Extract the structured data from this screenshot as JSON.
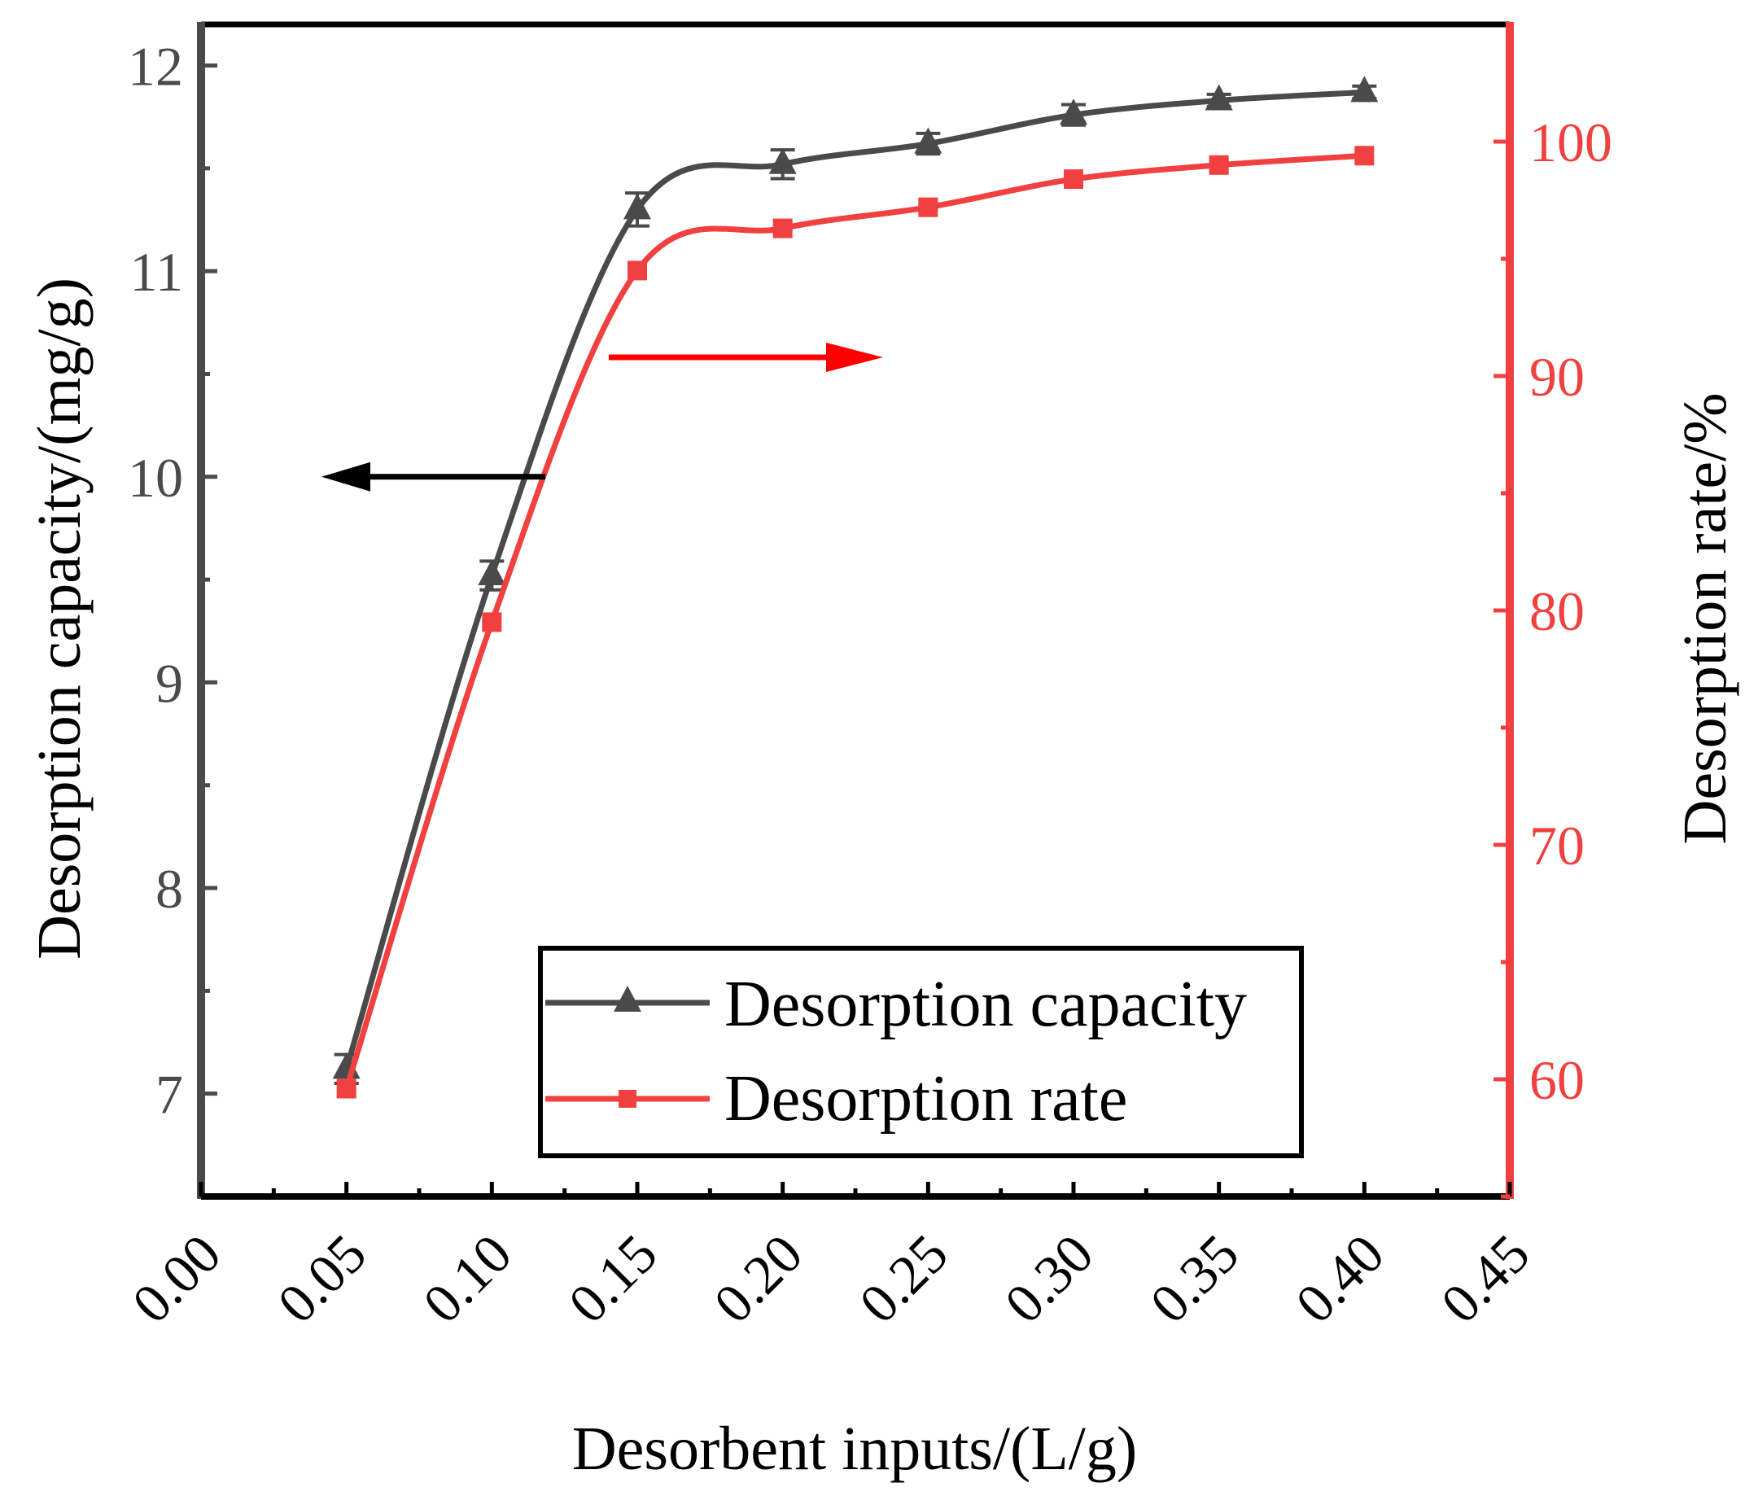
{
  "chart_data": {
    "type": "line",
    "x_axis": {
      "label": "Desorbent inputs/(L/g)",
      "range": [
        0.0,
        0.45
      ],
      "ticks": [
        "0.00",
        "0.05",
        "0.10",
        "0.15",
        "0.20",
        "0.25",
        "0.30",
        "0.35",
        "0.40",
        "0.45"
      ]
    },
    "y_axis_left": {
      "label": "Desorption capacity/(mg/g)",
      "range": [
        6.5,
        12.2
      ],
      "ticks": [
        "7",
        "8",
        "9",
        "10",
        "11",
        "12"
      ]
    },
    "y_axis_right": {
      "label": "Desorption rate/%",
      "range": [
        55,
        105
      ],
      "ticks": [
        "60",
        "70",
        "80",
        "90",
        "100"
      ]
    },
    "x": [
      0.05,
      0.1,
      0.15,
      0.2,
      0.25,
      0.3,
      0.35,
      0.4
    ],
    "series": [
      {
        "name": "Desorption capacity",
        "axis": "left",
        "marker": "triangle",
        "values": [
          7.12,
          9.52,
          11.3,
          11.52,
          11.62,
          11.76,
          11.83,
          11.87
        ],
        "errors": [
          0.07,
          0.07,
          0.08,
          0.07,
          0.05,
          0.05,
          0.03,
          0.03
        ]
      },
      {
        "name": "Desorption rate",
        "axis": "right",
        "marker": "square",
        "values": [
          59.6,
          79.5,
          94.5,
          96.3,
          97.2,
          98.4,
          99.0,
          99.4
        ]
      }
    ],
    "legend_position": "bottom-center",
    "annotations": [
      "left arrow points to capacity axis",
      "right arrow points to rate axis"
    ]
  },
  "colors": {
    "capacity": "#4a4a4a",
    "rate": "#f04040",
    "rate_arrow": "#ff0000",
    "frame": "#000000"
  }
}
